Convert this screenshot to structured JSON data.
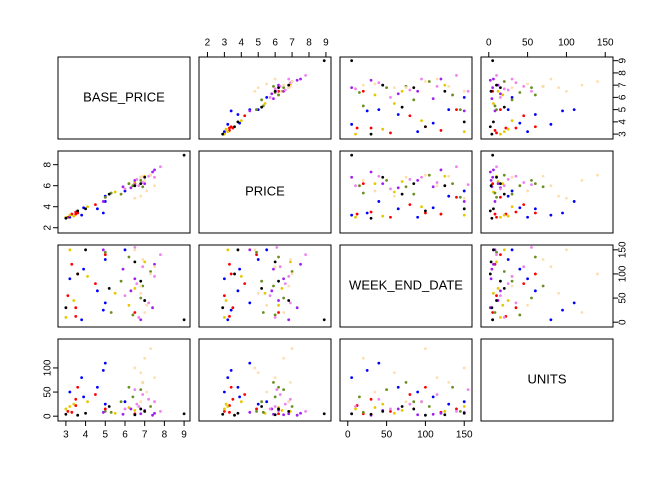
{
  "chart_data": {
    "type": "scatter_matrix",
    "variables": [
      {
        "name": "BASE_PRICE",
        "lim": [
          2.6,
          9.3
        ],
        "xticks": [
          3,
          4,
          5,
          6,
          7,
          8,
          9
        ],
        "yticks": [
          3,
          4,
          5,
          6,
          7,
          8,
          9
        ]
      },
      {
        "name": "PRICE",
        "lim": [
          1.5,
          9.3
        ],
        "xticks": [
          2,
          3,
          4,
          5,
          6,
          7,
          8,
          9
        ],
        "yticks": [
          2,
          4,
          6,
          8
        ]
      },
      {
        "name": "WEEK_END_DATE",
        "lim": [
          -10,
          160
        ],
        "xticks": [
          0,
          50,
          100,
          150
        ],
        "yticks": [
          0,
          50,
          100,
          150
        ]
      },
      {
        "name": "UNITS",
        "lim": [
          -10,
          160
        ],
        "xticks": [
          0,
          50,
          100,
          150
        ],
        "yticks": [
          0,
          50,
          100
        ]
      }
    ],
    "groups": [
      {
        "color": "#ff0000",
        "rows": [
          [
            3.5,
            3.3,
            12,
            22
          ],
          [
            3.5,
            3.5,
            30,
            35
          ],
          [
            3.1,
            3.0,
            55,
            10
          ],
          [
            4.5,
            4.2,
            80,
            45
          ],
          [
            5.0,
            4.9,
            140,
            15
          ],
          [
            3.6,
            3.4,
            100,
            60
          ],
          [
            3.3,
            3.3,
            120,
            8
          ],
          [
            6.5,
            6.2,
            20,
            5
          ]
        ]
      },
      {
        "color": "#0000ff",
        "rows": [
          [
            3.8,
            3.2,
            5,
            80
          ],
          [
            5.0,
            4.5,
            40,
            110
          ],
          [
            4.6,
            3.8,
            65,
            60
          ],
          [
            3.2,
            3.0,
            90,
            50
          ],
          [
            5.0,
            5.0,
            130,
            25
          ],
          [
            3.9,
            3.9,
            110,
            40
          ],
          [
            6.0,
            5.5,
            150,
            30
          ],
          [
            4.9,
            3.4,
            25,
            95
          ]
        ]
      },
      {
        "color": "#e6c800",
        "rows": [
          [
            3.0,
            3.0,
            10,
            15
          ],
          [
            3.4,
            3.1,
            45,
            25
          ],
          [
            6.5,
            6.4,
            70,
            12
          ],
          [
            4.1,
            4.0,
            95,
            30
          ],
          [
            7.0,
            6.9,
            125,
            10
          ],
          [
            3.2,
            3.2,
            150,
            20
          ],
          [
            5.5,
            5.4,
            60,
            6
          ],
          [
            6.2,
            6.2,
            35,
            18
          ]
        ]
      },
      {
        "color": "#6b8e23",
        "rows": [
          [
            6.4,
            6.0,
            15,
            40
          ],
          [
            6.8,
            6.5,
            50,
            55
          ],
          [
            5.8,
            5.2,
            85,
            30
          ],
          [
            7.3,
            7.0,
            105,
            20
          ],
          [
            6.2,
            6.2,
            135,
            60
          ],
          [
            5.0,
            4.9,
            145,
            10
          ],
          [
            6.9,
            5.9,
            75,
            70
          ],
          [
            5.3,
            5.3,
            20,
            8
          ]
        ]
      },
      {
        "color": "#a020f0",
        "rows": [
          [
            6.8,
            6.8,
            5,
            5
          ],
          [
            7.0,
            6.2,
            45,
            12
          ],
          [
            6.5,
            6.5,
            90,
            3
          ],
          [
            7.5,
            7.5,
            120,
            6
          ],
          [
            4.9,
            4.5,
            150,
            8
          ],
          [
            6.3,
            5.8,
            65,
            15
          ],
          [
            7.4,
            7.3,
            30,
            2
          ],
          [
            5.9,
            5.9,
            110,
            4
          ]
        ]
      },
      {
        "color": "#ee82ee",
        "rows": [
          [
            6.7,
            6.0,
            10,
            20
          ],
          [
            7.2,
            6.9,
            40,
            35
          ],
          [
            6.6,
            6.6,
            80,
            25
          ],
          [
            6.9,
            6.3,
            115,
            45
          ],
          [
            7.8,
            7.8,
            140,
            10
          ],
          [
            6.0,
            5.7,
            55,
            15
          ],
          [
            7.5,
            6.8,
            95,
            30
          ],
          [
            6.5,
            6.1,
            155,
            55
          ]
        ]
      },
      {
        "color": "#ffdead",
        "rows": [
          [
            7.0,
            6.5,
            20,
            120
          ],
          [
            6.8,
            5.0,
            60,
            90
          ],
          [
            7.3,
            7.0,
            100,
            140
          ],
          [
            6.9,
            6.9,
            130,
            70
          ],
          [
            7.1,
            5.5,
            35,
            50
          ],
          [
            6.5,
            4.8,
            150,
            100
          ],
          [
            6.8,
            6.8,
            75,
            30
          ],
          [
            7.5,
            6.0,
            115,
            80
          ]
        ]
      },
      {
        "color": "#000000",
        "rows": [
          [
            9.0,
            8.9,
            5,
            5
          ],
          [
            5.2,
            5.2,
            70,
            20
          ],
          [
            6.5,
            6.0,
            125,
            3
          ],
          [
            3.6,
            3.6,
            100,
            2
          ],
          [
            7.0,
            6.8,
            45,
            10
          ],
          [
            4.0,
            3.8,
            150,
            6
          ],
          [
            6.8,
            6.2,
            85,
            15
          ],
          [
            3.0,
            2.9,
            30,
            4
          ]
        ]
      }
    ]
  }
}
